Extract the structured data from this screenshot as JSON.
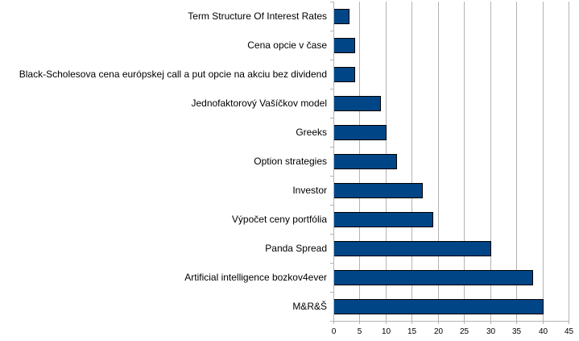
{
  "chart_data": {
    "type": "bar",
    "orientation": "horizontal",
    "categories": [
      "Term Structure Of Interest Rates",
      "Cena opcie v čase",
      "Black-Scholesova cena európskej call a put opcie na akciu bez dividend",
      "Jednofaktorový Vašíčkov model",
      "Greeks",
      "Option strategies",
      "Investor",
      "Výpočet ceny portfólia",
      "Panda Spread",
      "Artificial intelligence bozkov4ever",
      "M&R&Š"
    ],
    "values": [
      3,
      4,
      4,
      9,
      10,
      12,
      17,
      19,
      30,
      38,
      40
    ],
    "xlim": [
      0,
      45
    ],
    "xticks": [
      "0",
      "5",
      "10",
      "15",
      "20",
      "25",
      "30",
      "35",
      "40",
      "45"
    ],
    "grid": "vertical",
    "legend": "none",
    "bar_color": "#004586",
    "bar_edge_color": "#000000",
    "grid_color": "#b3b3b3",
    "title": "",
    "xlabel": "",
    "ylabel": ""
  }
}
